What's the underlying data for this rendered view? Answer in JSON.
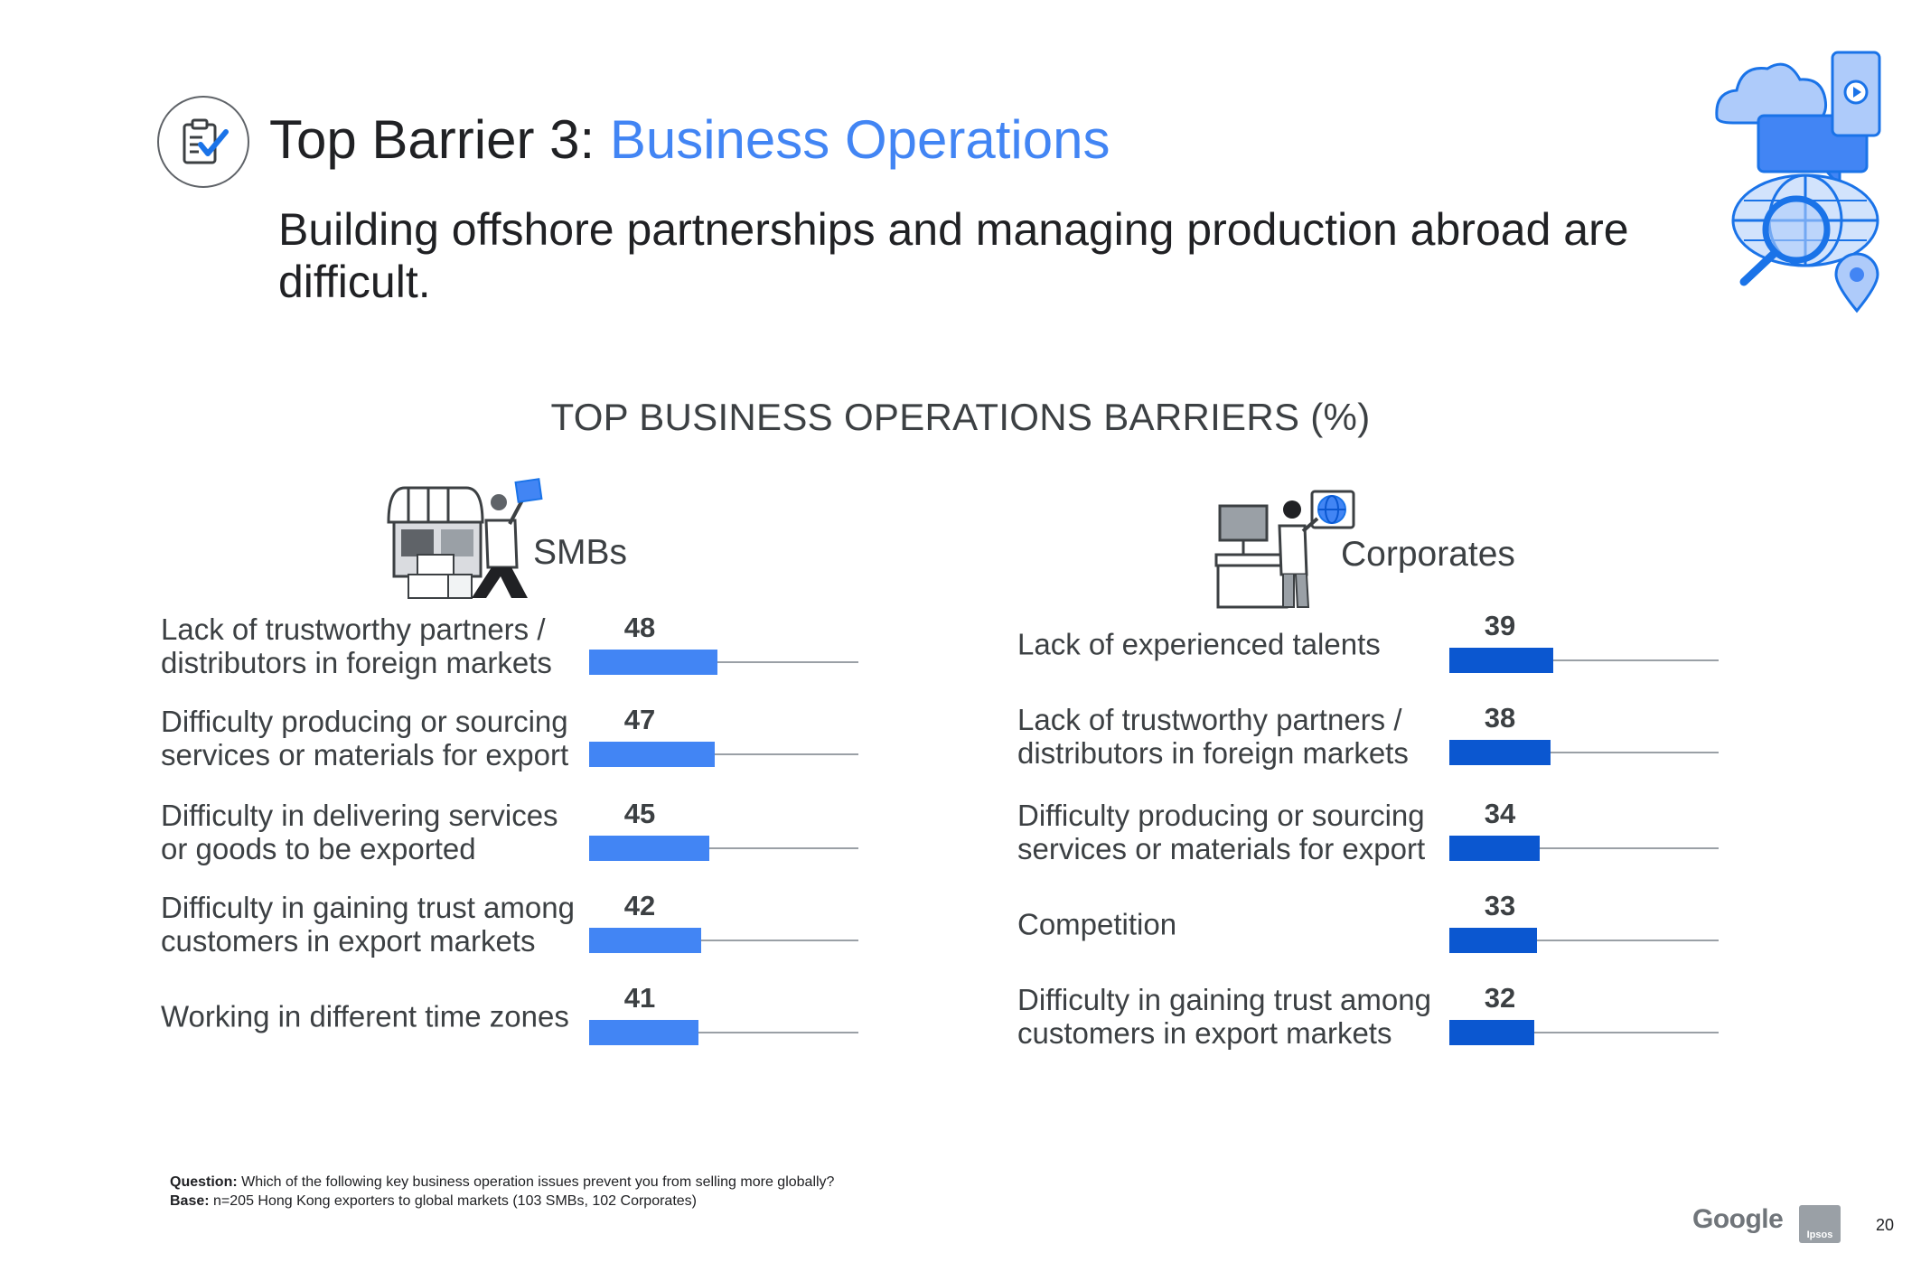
{
  "header": {
    "title_prefix": "Top Barrier 3: ",
    "title_accent": "Business Operations",
    "subtitle": "Building offshore partnerships and managing production abroad are difficult."
  },
  "colors": {
    "smb_bar": "#4285f4",
    "corp_bar": "#0b57d0",
    "accent": "#4285f4"
  },
  "chart_data": [
    {
      "type": "bar",
      "orientation": "horizontal",
      "title": "TOP BUSINESS OPERATIONS BARRIERS (%)",
      "panel": "SMBs",
      "categories": [
        "Lack of trustworthy partners / distributors in foreign markets",
        "Difficulty producing or sourcing services or materials for export",
        "Difficulty in delivering services or goods to be exported",
        "Difficulty in gaining trust among customers in export markets",
        "Working in different time zones"
      ],
      "values": [
        48,
        47,
        45,
        42,
        41
      ],
      "xlim": [
        0,
        100
      ],
      "grid": false
    },
    {
      "type": "bar",
      "orientation": "horizontal",
      "title": "TOP BUSINESS OPERATIONS BARRIERS (%)",
      "panel": "Corporates",
      "categories": [
        "Lack of experienced talents",
        "Lack of trustworthy partners / distributors in foreign markets",
        "Difficulty producing or sourcing services or materials for export",
        "Competition",
        "Difficulty in gaining trust among customers in export markets"
      ],
      "values": [
        39,
        38,
        34,
        33,
        32
      ],
      "xlim": [
        0,
        100
      ],
      "grid": false
    }
  ],
  "chart_title": "TOP BUSINESS OPERATIONS BARRIERS (%)",
  "panels": {
    "smb": {
      "heading": "SMBs"
    },
    "corp": {
      "heading": "Corporates"
    }
  },
  "footnote": {
    "question_label": "Question:",
    "question_text": " Which of the following key business operation issues prevent you from selling more globally?",
    "base_label": "Base:",
    "base_text": " n=205 Hong Kong exporters to global markets (103 SMBs, 102 Corporates)"
  },
  "footer": {
    "google": "Google",
    "ipsos": "Ipsos",
    "page_number": "20"
  },
  "icons": {
    "title": "clipboard-check-icon",
    "hero": "global-search-illustration",
    "smb": "shop-person-illustration",
    "corp": "office-person-globe-illustration"
  }
}
